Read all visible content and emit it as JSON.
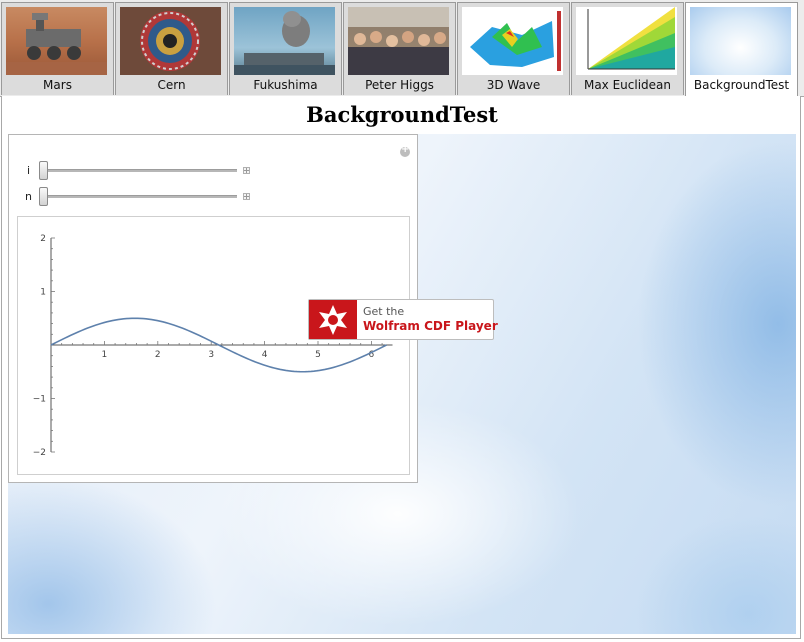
{
  "tabs": [
    {
      "label": "Mars",
      "active": false
    },
    {
      "label": "Cern",
      "active": false
    },
    {
      "label": "Fukushima",
      "active": false
    },
    {
      "label": "Peter Higgs",
      "active": false
    },
    {
      "label": "3D Wave",
      "active": false
    },
    {
      "label": "Max Euclidean",
      "active": false
    },
    {
      "label": "BackgroundTest",
      "active": true
    }
  ],
  "page": {
    "title": "BackgroundTest"
  },
  "controls": {
    "sliders": [
      {
        "label": "i",
        "value": 0
      },
      {
        "label": "n",
        "value": 0
      }
    ],
    "options_icon": "plus-circle-icon"
  },
  "chart_data": {
    "type": "line",
    "function": "0.5*sin(x)",
    "xlim": [
      0,
      6.283
    ],
    "ylim": [
      -2,
      2
    ],
    "xticks": [
      "1",
      "2",
      "3",
      "4",
      "5",
      "6"
    ],
    "yticks": [
      "2",
      "1",
      "−1",
      "−2"
    ],
    "series": [
      {
        "x": [
          0,
          0.5,
          1,
          1.5708,
          2,
          2.5,
          3,
          3.1416,
          3.5,
          4,
          4.7124,
          5,
          5.5,
          6,
          6.283
        ],
        "y": [
          0,
          0.24,
          0.42,
          0.5,
          0.45,
          0.3,
          0.07,
          0,
          -0.18,
          -0.38,
          -0.5,
          -0.48,
          -0.35,
          -0.14,
          0
        ],
        "color": "#5e81ac"
      }
    ]
  },
  "badge": {
    "line1": "Get the",
    "line2": "Wolfram CDF Player",
    "color": "#c9161b"
  }
}
